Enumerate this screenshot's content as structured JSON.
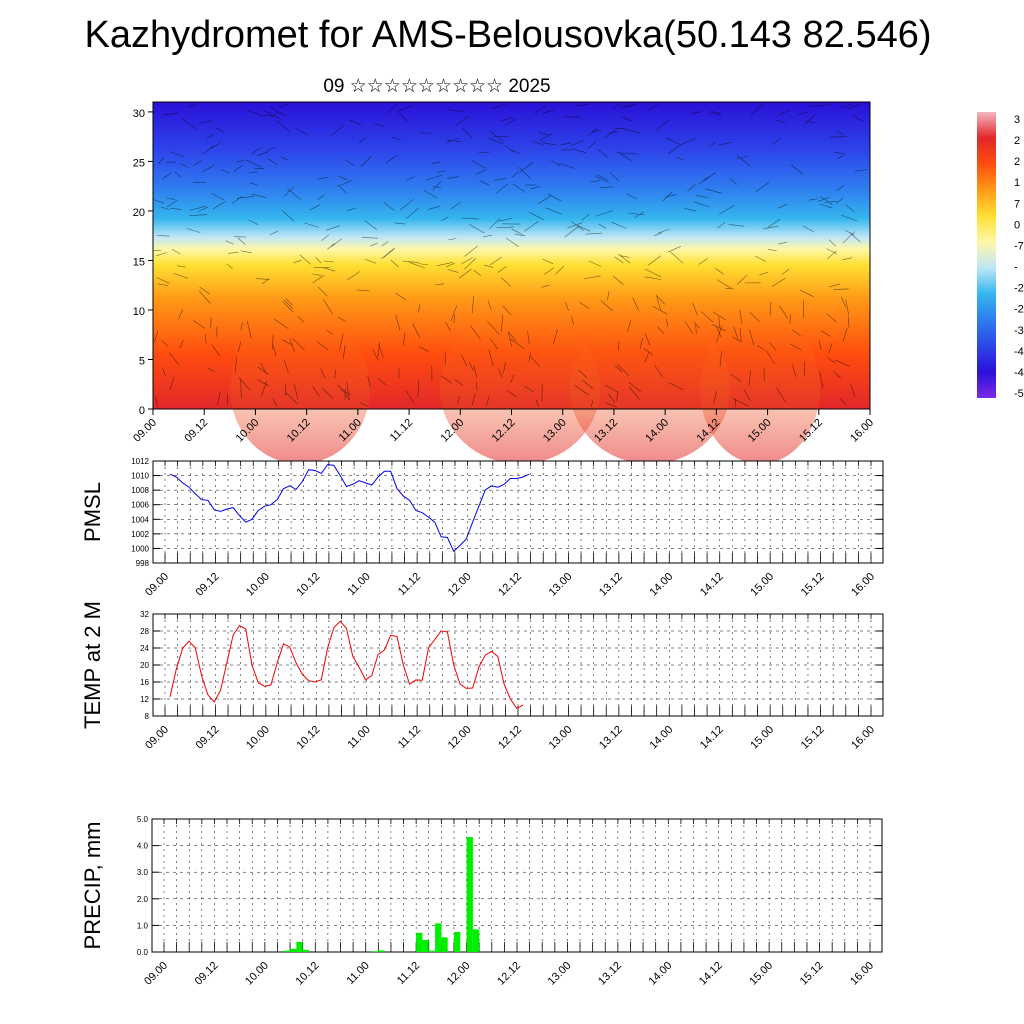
{
  "title": "Kazhydromet for AMS-Belousovka(50.143 82.546)",
  "chart_data": [
    {
      "type": "heatmap",
      "title": "09 ☆☆☆☆☆☆☆☆☆ 2025",
      "y_ticks": [
        "0",
        "5",
        "10",
        "15",
        "20",
        "25",
        "30"
      ],
      "ylim": [
        0,
        31
      ],
      "x_ticks": [
        "09.00",
        "09.12",
        "10.00",
        "10.12",
        "11.00",
        "11.12",
        "12.00",
        "12.12",
        "13.00",
        "13.12",
        "14.00",
        "14.12",
        "15.00",
        "15.12",
        "16.00"
      ],
      "colorbar_labels": [
        "3",
        "2",
        "2",
        "1",
        "7",
        "0",
        "-7",
        "-",
        "-2",
        "-2",
        "-3",
        "-4",
        "-4",
        "-5"
      ],
      "colors": [
        "#f3b7c0",
        "#e2272a",
        "#ff4d0f",
        "#ff9a17",
        "#ffe033",
        "#fff7a8",
        "#bfe6f7",
        "#35b6ee",
        "#2f7cf0",
        "#2d46ea",
        "#2a10d8",
        "#7d29e9"
      ]
    },
    {
      "type": "line",
      "ylabel": "PMSL",
      "y_ticks": [
        "1012",
        "1010",
        "1008",
        "1006",
        "1004",
        "1002",
        "1000",
        "998"
      ],
      "ylim": [
        998,
        1012
      ],
      "x_ticks": [
        "09.00",
        "09.12",
        "10.00",
        "10.12",
        "11.00",
        "11.12",
        "12.00",
        "12.12",
        "13.00",
        "13.12",
        "14.00",
        "14.12",
        "15.00",
        "15.12",
        "16.00"
      ],
      "values": [
        1010.2,
        1009.8,
        1009.0,
        1008.4,
        1007.5,
        1006.7,
        1006.6,
        1005.3,
        1005.1,
        1005.4,
        1005.6,
        1004.5,
        1003.6,
        1004.0,
        1005.2,
        1005.8,
        1006.0,
        1006.7,
        1008.2,
        1008.6,
        1008.1,
        1009.2,
        1010.8,
        1010.7,
        1010.3,
        1011.5,
        1011.4,
        1010.0,
        1008.5,
        1008.8,
        1009.3,
        1009.0,
        1008.7,
        1009.8,
        1010.6,
        1010.6,
        1008.2,
        1007.2,
        1006.6,
        1005.2,
        1004.9,
        1004.3,
        1003.6,
        1001.6,
        1001.5,
        999.6,
        1000.4,
        1001.3,
        1003.6,
        1005.8,
        1008.0,
        1008.6,
        1008.4,
        1008.8,
        1009.6,
        1009.6,
        1009.8,
        1010.2
      ],
      "color": "#0000ee"
    },
    {
      "type": "line",
      "ylabel": "TEMP at 2 M",
      "y_ticks": [
        "32",
        "28",
        "24",
        "20",
        "16",
        "12",
        "8"
      ],
      "ylim": [
        8,
        32
      ],
      "x_ticks": [
        "09.00",
        "09.12",
        "10.00",
        "10.12",
        "11.00",
        "11.12",
        "12.00",
        "12.12",
        "13.00",
        "13.12",
        "14.00",
        "14.12",
        "15.00",
        "15.12",
        "16.00"
      ],
      "values": [
        12.5,
        19.0,
        24.0,
        25.6,
        24.0,
        17.5,
        13.0,
        11.3,
        14.0,
        20.5,
        27.0,
        29.3,
        28.5,
        20.0,
        15.8,
        15.0,
        15.3,
        20.5,
        25.0,
        24.2,
        20.5,
        17.8,
        16.3,
        16.0,
        16.5,
        24.0,
        28.8,
        30.3,
        28.6,
        22.0,
        19.5,
        16.5,
        17.5,
        22.5,
        23.5,
        27.0,
        26.7,
        20.0,
        15.5,
        16.5,
        16.4,
        24.0,
        26.0,
        28.0,
        27.8,
        20.0,
        15.5,
        14.5,
        14.6,
        19.5,
        22.3,
        23.2,
        22.0,
        15.5,
        12.0,
        9.8,
        10.6
      ],
      "color": "#ee0000"
    },
    {
      "type": "bar",
      "ylabel": "PRECIP, mm",
      "y_ticks": [
        "5.0",
        "4.0",
        "3.0",
        "2.0",
        "1.0",
        "0.0"
      ],
      "ylim": [
        0,
        5
      ],
      "x_ticks": [
        "09.00",
        "09.12",
        "10.00",
        "10.12",
        "11.00",
        "11.12",
        "12.00",
        "12.12",
        "13.00",
        "13.12",
        "14.00",
        "14.12",
        "15.00",
        "15.12",
        "16.00"
      ],
      "bars": [
        {
          "step": 19,
          "value": 0.05
        },
        {
          "step": 20,
          "value": 0.12
        },
        {
          "step": 21,
          "value": 0.38
        },
        {
          "step": 22,
          "value": 0.08
        },
        {
          "step": 33,
          "value": 0.03
        },
        {
          "step": 34,
          "value": 0.06
        },
        {
          "step": 40,
          "value": 0.72
        },
        {
          "step": 41,
          "value": 0.45
        },
        {
          "step": 42,
          "value": 0.05
        },
        {
          "step": 43,
          "value": 1.08
        },
        {
          "step": 44,
          "value": 0.55
        },
        {
          "step": 46,
          "value": 0.75
        },
        {
          "step": 48,
          "value": 4.32
        },
        {
          "step": 49,
          "value": 0.85
        }
      ],
      "color": "#00ee00"
    }
  ]
}
